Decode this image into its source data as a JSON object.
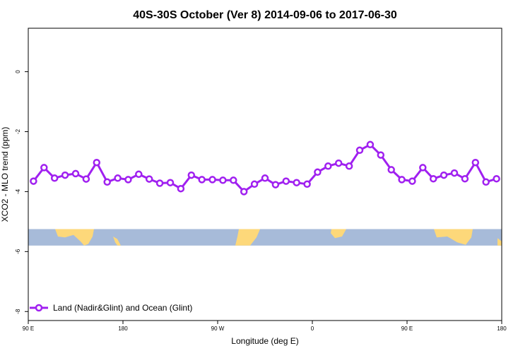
{
  "chart_data": {
    "type": "line",
    "title": "40S-30S October (Ver 8)   2014-09-06 to 2017-06-30",
    "xlabel": "Longitude (deg E)",
    "ylabel": "XCO2 - MLO trend (ppm)",
    "x_tick_labels": [
      "90 E",
      "180",
      "90 W",
      "0",
      "90 E",
      "180"
    ],
    "x_tick_values": [
      90,
      180,
      270,
      360,
      450,
      540
    ],
    "xlim": [
      90,
      540
    ],
    "y_tick_labels": [
      "0",
      "-2",
      "-4",
      "-6",
      "-8"
    ],
    "y_tick_values": [
      0,
      -2,
      -4,
      -6,
      -8
    ],
    "ylim": [
      -8.3,
      1.45
    ],
    "grid": false,
    "legend_position": "bottom-left",
    "series": [
      {
        "name": "Land (Nadir&Glint) and Ocean (Glint)",
        "color": "#a020f0",
        "x": [
          95,
          105,
          115,
          125,
          135,
          145,
          155,
          165,
          175,
          185,
          195,
          205,
          215,
          225,
          235,
          245,
          255,
          265,
          275,
          285,
          295,
          305,
          315,
          325,
          335,
          345,
          355,
          365,
          375,
          385,
          395,
          405,
          415,
          425,
          435,
          445,
          455,
          465,
          475,
          485,
          495,
          505,
          515,
          525,
          535
        ],
        "values": [
          -3.65,
          -3.2,
          -3.55,
          -3.45,
          -3.4,
          -3.58,
          -3.03,
          -3.68,
          -3.55,
          -3.6,
          -3.42,
          -3.58,
          -3.72,
          -3.7,
          -3.9,
          -3.45,
          -3.6,
          -3.6,
          -3.62,
          -3.62,
          -4.0,
          -3.75,
          -3.55,
          -3.77,
          -3.65,
          -3.7,
          -3.75,
          -3.35,
          -3.15,
          -3.05,
          -3.15,
          -2.62,
          -2.43,
          -2.78,
          -3.27,
          -3.6,
          -3.65,
          -3.2,
          -3.57,
          -3.45,
          -3.38,
          -3.57,
          -3.03,
          -3.68,
          -3.57
        ]
      }
    ],
    "map_strip": {
      "ocean_color": "#a7bbd9",
      "land_color": "#fdd87a",
      "y_range": [
        -5.8,
        -5.25
      ]
    }
  }
}
